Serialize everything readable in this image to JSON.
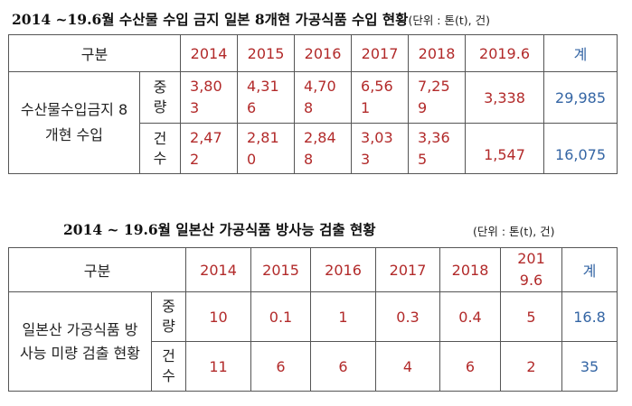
{
  "table1": {
    "title": "2014 ~19.6월 수산물 수입 금지 일본 8개현 가공식품 수입 현황",
    "unit": "(단위 : 톤(t), 건)",
    "header": {
      "label": "구분",
      "years": [
        "2014",
        "2015",
        "2016",
        "2017",
        "2018",
        "2019.6"
      ],
      "total": "계"
    },
    "row_group": "수산물수입금지 8개현 수입",
    "rows": [
      {
        "sub": "중량",
        "values": [
          "3,803",
          "4,316",
          "4,708",
          "6,561",
          "7,259",
          "3,338"
        ],
        "total": "29,985"
      },
      {
        "sub": "건수",
        "values": [
          "2,472",
          "2,810",
          "2,848",
          "3,033",
          "3,365",
          "1,547"
        ],
        "total": "16,075"
      }
    ]
  },
  "table2": {
    "title": "2014 ~ 19.6월 일본산 가공식품 방사능 검출 현황",
    "unit": "(단위 : 톤(t), 건)",
    "header": {
      "label": "구분",
      "years": [
        "2014",
        "2015",
        "2016",
        "2017",
        "2018",
        "2019.6"
      ],
      "total": "계"
    },
    "row_group": "일본산 가공식품 방사능 미량 검출 현황",
    "rows": [
      {
        "sub": "중량",
        "values": [
          "10",
          "0.1",
          "1",
          "0.3",
          "0.4",
          "5"
        ],
        "total": "16.8"
      },
      {
        "sub": "건수",
        "values": [
          "11",
          "6",
          "6",
          "4",
          "6",
          "2"
        ],
        "total": "35"
      }
    ]
  }
}
